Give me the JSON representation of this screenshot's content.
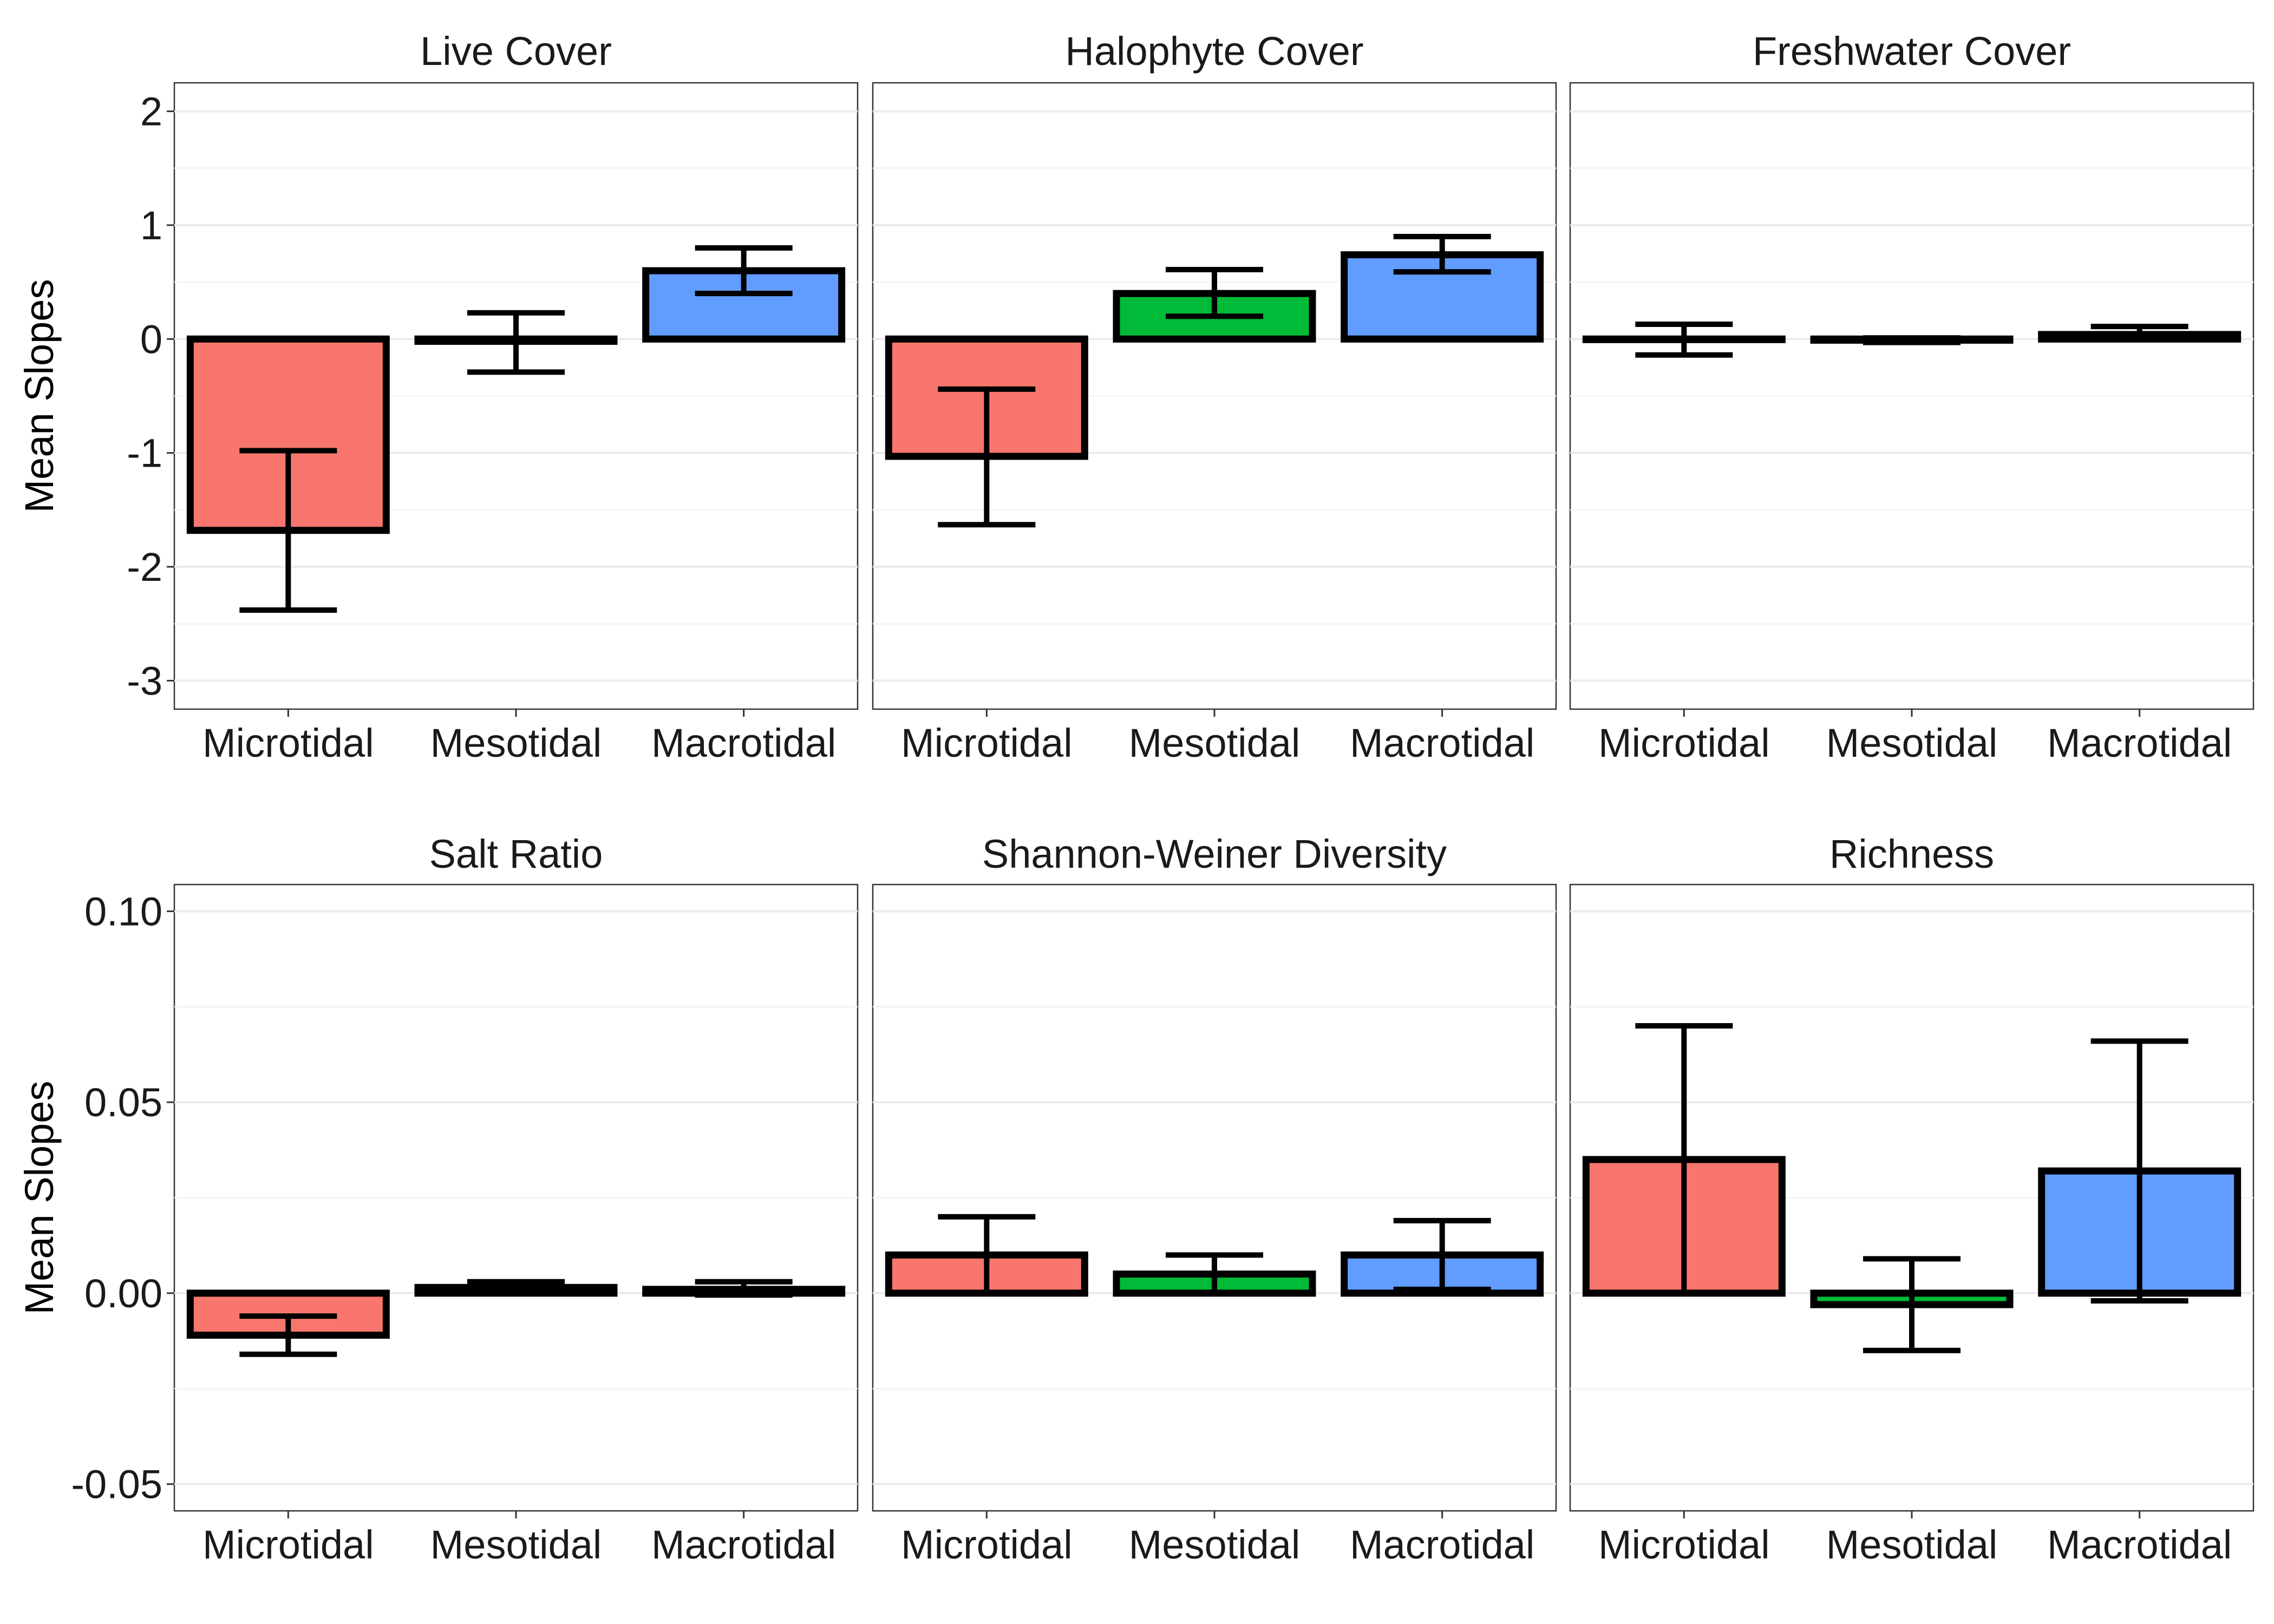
{
  "colors": {
    "Microtidal": "#F8766D",
    "Mesotidal": "#00BA38",
    "Macrotidal": "#619CFF"
  },
  "ylabel": "Mean Slopes",
  "chart_data": [
    {
      "type": "bar",
      "row": 0,
      "col": 0,
      "title": "Live Cover",
      "categories": [
        "Microtidal",
        "Mesotidal",
        "Macrotidal"
      ],
      "values": [
        -1.68,
        -0.02,
        0.6
      ],
      "error_low": [
        -2.38,
        -0.29,
        0.4
      ],
      "error_high": [
        -0.98,
        0.23,
        0.8
      ],
      "ylim": [
        -3.25,
        2.25
      ],
      "yticks": [
        -3,
        -2,
        -1,
        0,
        1,
        2
      ],
      "ytick_labels": [
        "-3",
        "-2",
        "-1",
        "0",
        "1",
        "2"
      ],
      "ylabel": "Mean Slopes"
    },
    {
      "type": "bar",
      "row": 0,
      "col": 1,
      "title": "Halophyte Cover",
      "categories": [
        "Microtidal",
        "Mesotidal",
        "Macrotidal"
      ],
      "values": [
        -1.03,
        0.4,
        0.74
      ],
      "error_low": [
        -1.63,
        0.2,
        0.59
      ],
      "error_high": [
        -0.44,
        0.61,
        0.9
      ],
      "ylim": [
        -3.25,
        2.25
      ]
    },
    {
      "type": "bar",
      "row": 0,
      "col": 2,
      "title": "Freshwater Cover",
      "categories": [
        "Microtidal",
        "Mesotidal",
        "Macrotidal"
      ],
      "values": [
        0.0,
        -0.01,
        0.04
      ],
      "error_low": [
        -0.14,
        -0.03,
        0.02
      ],
      "error_high": [
        0.13,
        0.01,
        0.11
      ],
      "ylim": [
        -3.25,
        2.25
      ]
    },
    {
      "type": "bar",
      "row": 1,
      "col": 0,
      "title": "Salt Ratio",
      "categories": [
        "Microtidal",
        "Mesotidal",
        "Macrotidal"
      ],
      "values": [
        -0.011,
        0.0015,
        0.001
      ],
      "error_low": [
        -0.016,
        0.0005,
        -0.0005
      ],
      "error_high": [
        -0.006,
        0.003,
        0.003
      ],
      "ylim": [
        -0.057,
        0.107
      ],
      "yticks": [
        -0.05,
        0.0,
        0.05,
        0.1
      ],
      "ytick_labels": [
        "-0.05",
        "0.00",
        "0.05",
        "0.10"
      ],
      "ylabel": "Mean Slopes"
    },
    {
      "type": "bar",
      "row": 1,
      "col": 1,
      "title": "Shannon-Weiner Diversity",
      "categories": [
        "Microtidal",
        "Mesotidal",
        "Macrotidal"
      ],
      "values": [
        0.01,
        0.005,
        0.01
      ],
      "error_low": [
        0.0,
        0.0,
        0.001
      ],
      "error_high": [
        0.02,
        0.01,
        0.019
      ],
      "ylim": [
        -0.057,
        0.107
      ]
    },
    {
      "type": "bar",
      "row": 1,
      "col": 2,
      "title": "Richness",
      "categories": [
        "Microtidal",
        "Mesotidal",
        "Macrotidal"
      ],
      "values": [
        0.035,
        -0.003,
        0.032
      ],
      "error_low": [
        0.0,
        -0.015,
        -0.002
      ],
      "error_high": [
        0.07,
        0.009,
        0.066
      ],
      "ylim": [
        -0.057,
        0.107
      ]
    }
  ]
}
